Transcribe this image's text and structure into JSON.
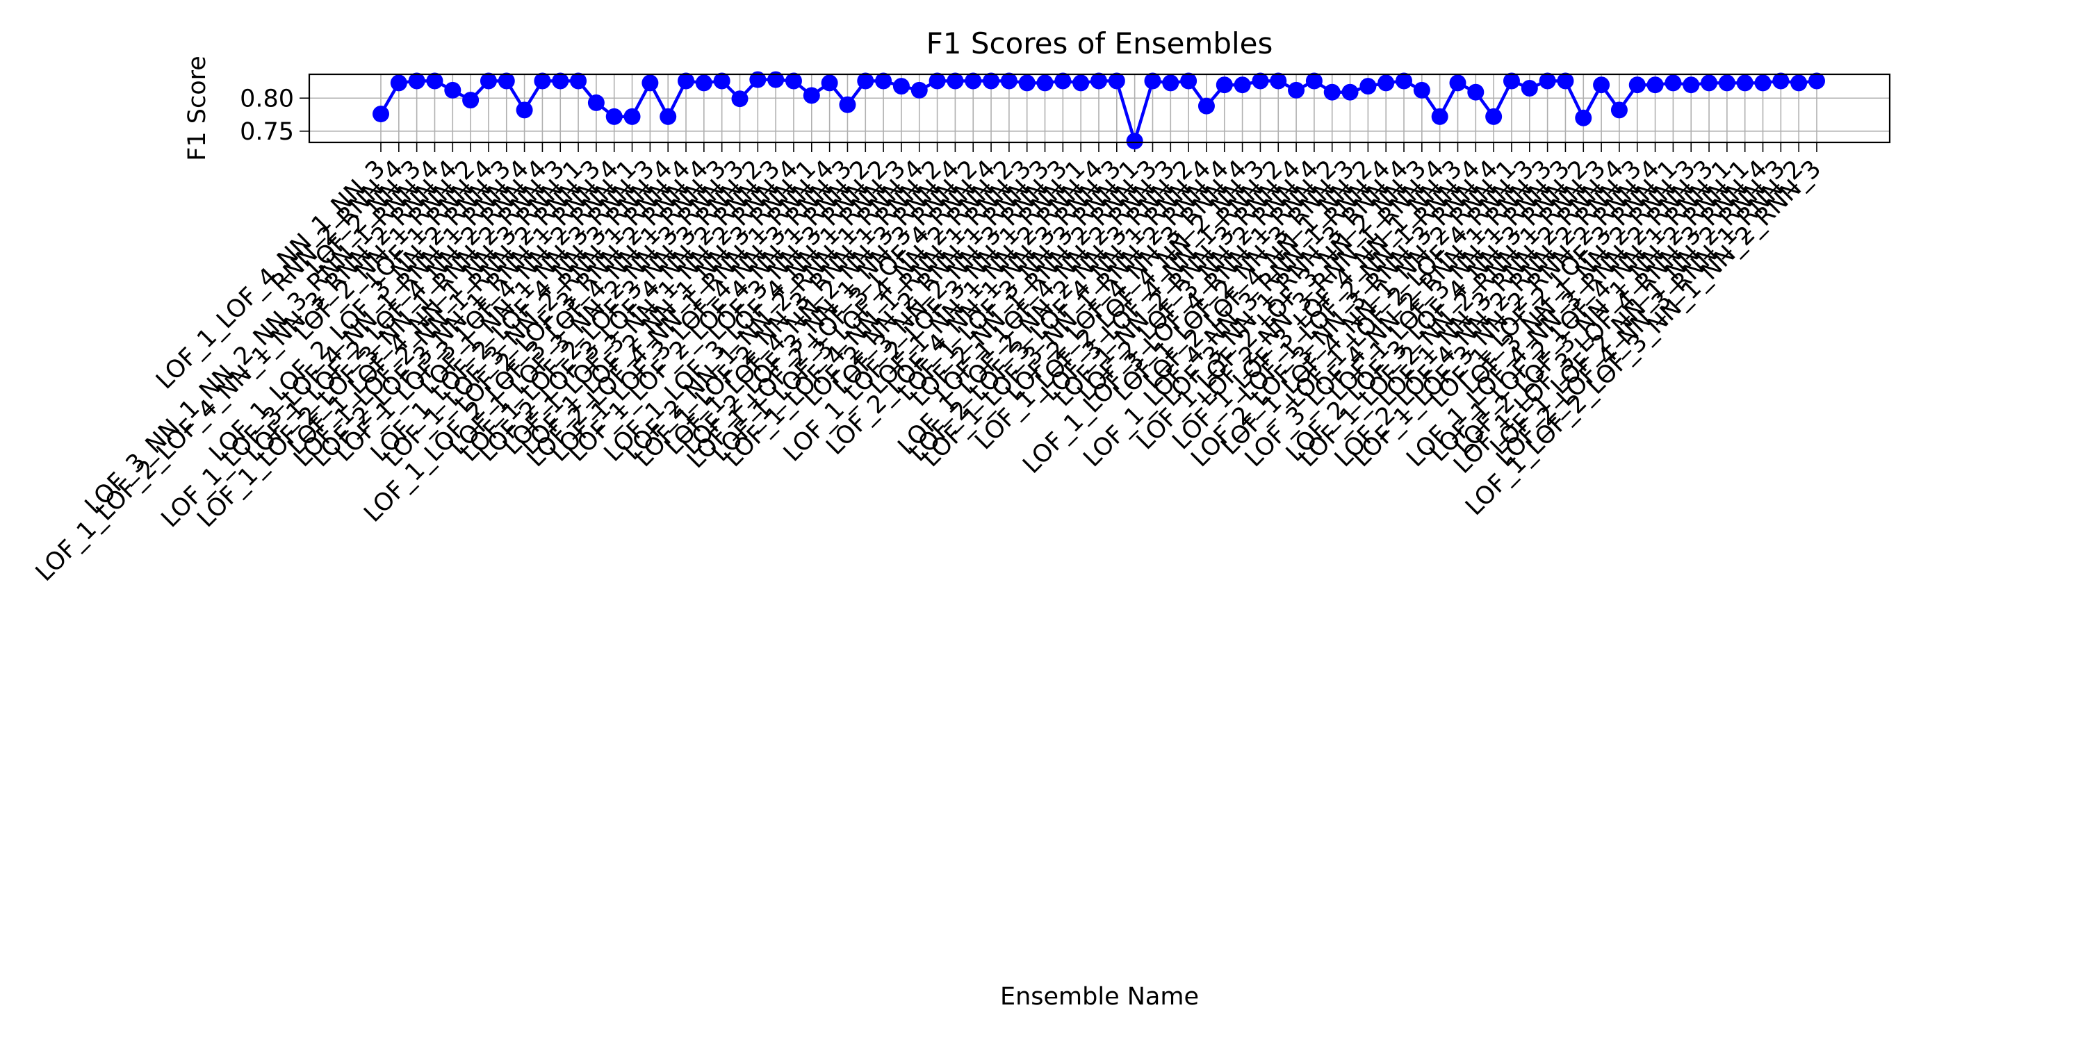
{
  "chart_data": {
    "type": "line",
    "title": "F1 Scores of Ensembles",
    "xlabel": "Ensemble Name",
    "ylabel": "F1 Score",
    "yticks": [
      0.75,
      0.8
    ],
    "ytick_labels": [
      "0.75",
      "0.80"
    ],
    "ylim": [
      0.733,
      0.836
    ],
    "grid": true,
    "marker": "circle",
    "color": "#0000ff",
    "x": [
      "LOF_1_LOF_4_NN_1_NN_3",
      "RNN_2_RNN_4",
      "LOF_2_NN_3",
      "LOF_3_NN_1_NN_2_NN_3_RNN_1_RNN_4",
      "LOF_1_LOF_2_LOF_4_NN_1_NN_3_RNN_2_RNN_4",
      "LOF_2_NN_1_RNN_2",
      "LOF_1_RNN_4",
      "LOF_1_LOF_2_LOF_3_NN_2_RNN_3",
      "LOF_1_LOF_3_LOF_4_NN_1_RNN_1_RNN_4",
      "LOF_1_LOF_2_LOF_4_NN_2_RNN_4",
      "LOF_1_LOF_2_LOF_3_NN_1_RNN_2_RNN_3",
      "LOF_1_LOF_4_NN_1_NN_3_RNN_1",
      "LOF_1_LOF_2_NN_1_RNN_2_RNN_3",
      "LOF_2_LOF_3_NN_1_RNN_1_RNN_4",
      "LOF_1_LOF_3_LOF_4_NN_2_RNN_1",
      "LOF_1_NN_1_NN_3_RNN_3",
      "LOF_1_LOF_2_LOF_4_NN_3_RNN_4",
      "LOF_1_LOF_3_NN_2_RNN_1_RNN_4",
      "LOF_2_LOF_3_RNN_2_RNN_4",
      "LOF_1_LOF_2_LOF_3_LOF_4_NN_1_RNN_3",
      "LOF_1_LOF_3_NN_2_NN_3_RNN_3",
      "LOF_1_LOF_2_LOF_3_NN_3_RNN_2",
      "LOF_2_LOF_3_LOF_4_NN_2_RNN_3",
      "LOF_1_LOF_3_NN_1_NN_2_RNN_4",
      "LOF_1_LOF_2_NN_1_NN_3_RNN_1",
      "LOF_2_LOF_4_NN_1_RNN_1_RNN_4",
      "LOF_1_LOF_3_LOF_4_NN_3_RNN_3",
      "LOF_1_LOF_2_LOF_4_NN_1_RNN_2",
      "LOF_3_NN_3_RNN_2",
      "LOF_1_LOF_3_LOF_4_NN_1_RNN_3",
      "LOF_2_NN_1_NN_2_RNN_1_RNN_4",
      "LOF_1_LOF_2_NN_3_RNN_1_RNN_2",
      "LOF_1_LOF_4_NN_2_NN_3_RNN_4",
      "LOF_2_LOF_3_NN_1_NN_3_RNN_2",
      "LOF_1_LOF_2_LOF_3_LOF_4_RNN_4",
      "LOF_1_LOF_3_LOF_4_NN_2_RNN_2",
      "LOF_1_LOF_4_NN_1_RNN_1_RNN_3",
      "LOF_2_NN_2_RNN_1_RNN_3",
      "LOF_3_NN_2_NN_3_RNN_3",
      "LOF_1_LOF_2_LOF_3_NN_1_RNN_1",
      "LOF_1_NN_1_NN_2_RNN_4",
      "LOF_2_LOF_4_NN_1_NN_3_RNN_3",
      "LOF_1_LOF_3_NN_3_RNN_1",
      "LOF_2_NN_1_RNN_2_RNN_3",
      "LOF_1_LOF_4_NN_2_RNN_3",
      "LOF_1_LOF_2_NN_2_NN_3_RNN_2",
      "LOF_2_LOF_3_LOF_4_NN_1_RNN_4",
      "LOF_1_LOF_3_NN_1_RNN_2_RNN_4",
      "LOF_2_LOF_4_NN_3_RNN_4",
      "LOF_1_LOF_2_LOF_4_NN_2_NN_3",
      "LOF_3_LOF_4_NN_1_RNN_2",
      "LOF_1_NN_2_RNN_3_RNN_4",
      "LOF_2_LOF_3_NN_2_RNN_4",
      "LOF_1_LOF_3_LOF_4_RNN_1_RNN_2",
      "LOF_1_LOF_2_NN_3_RNN_3",
      "LOF_2_LOF_4_NN_1_NN_2",
      "LOF_1_LOF_4_NN_3_RNN_1_RNN_4",
      "LOF_3_NN_1_RNN_3_RNN_4",
      "LOF_1_LOF_2_LOF_3_NN_2_NN_3",
      "LOF_2_NN_3_RNN_1_RNN_4",
      "LOF_1_LOF_3_LOF_4_NN_1_NN_3",
      "LOF_1_LOF_2_NN_1_RNN_4",
      "LOF_2_LOF_3_NN_3_RNN_3_RNN_4",
      "LOF_1_LOF_4_NN_1_NN_2_RNN_1",
      "LOF_1_LOF_2_LOF_4_RNN_3",
      "LOF_3_LOF_4_NN_2_RNN_1_RNN_3",
      "LOF_1_LOF_3_NN_1_RNN_3",
      "LOF_2_LOF_3_LOF_4_NN_3_RNN_2",
      "LOF_1_LOF_2_NN_2_RNN_1_RNN_3",
      "LOF_1_NN_3_RNN_2_RNN_4",
      "LOF_2_LOF_4_NN_2_RNN_2_RNN_3",
      "LOF_1_LOF_3_NN_2_RNN_2_RNN_4",
      "LOF_1_LOF_2_LOF_3_RNN_1",
      "LOF_3_NN_1_NN_2_RNN_3",
      "LOF_1_LOF_4_NN_3_RNN_2_RNN_3",
      "LOF_1_LOF_2_LOF_4_NN_1_RNN_1",
      "LOF_2_LOF_3_NN_1_NN_2_RNN_1",
      "LOF_1_LOF_3_LOF_4_RNN_3_RNN_4",
      "LOF_1_LOF_2_NN_1_NN_2_RNN_3",
      "LOF_2_LOF_4_NN_3_RNN_1_RNN_2",
      "LOF_1_LOF_2_LOF_3_NN_1_NN_2_RNN_3"
    ],
    "series": [
      {
        "values": [
          0.776,
          0.823,
          0.826,
          0.826,
          0.812,
          0.797,
          0.826,
          0.826,
          0.782,
          0.826,
          0.826,
          0.826,
          0.793,
          0.772,
          0.772,
          0.823,
          0.772,
          0.826,
          0.823,
          0.826,
          0.799,
          0.828,
          0.828,
          0.826,
          0.804,
          0.823,
          0.79,
          0.826,
          0.826,
          0.818,
          0.812,
          0.826,
          0.826,
          0.826,
          0.826,
          0.826,
          0.823,
          0.823,
          0.826,
          0.823,
          0.826,
          0.826,
          0.735,
          0.826,
          0.823,
          0.826,
          0.788,
          0.82,
          0.82,
          0.826,
          0.826,
          0.812,
          0.826,
          0.809,
          0.809,
          0.818,
          0.823,
          0.826,
          0.812,
          0.772,
          0.823,
          0.809,
          0.772,
          0.826,
          0.815,
          0.826,
          0.826,
          0.77,
          0.82,
          0.782,
          0.82,
          0.82,
          0.823,
          0.82,
          0.823,
          0.823,
          0.823,
          0.823,
          0.826,
          0.823,
          0.826
        ]
      }
    ]
  }
}
